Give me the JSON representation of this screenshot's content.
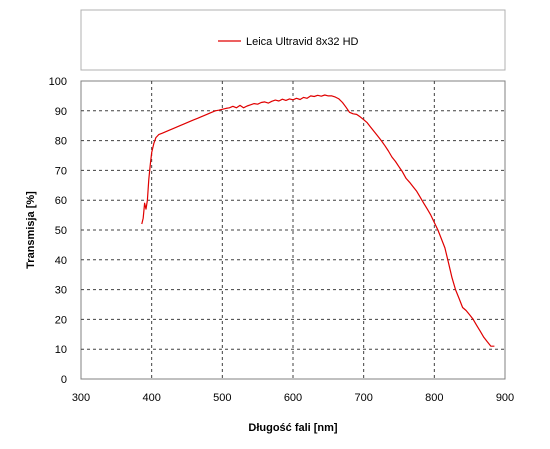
{
  "chart_data": {
    "type": "line",
    "title": "",
    "xlabel": "Długość fali [nm]",
    "ylabel": "Transmisja [%]",
    "xlim": [
      300,
      900
    ],
    "ylim": [
      0,
      100
    ],
    "xticks": [
      300,
      400,
      500,
      600,
      700,
      800,
      900
    ],
    "yticks": [
      0,
      10,
      20,
      30,
      40,
      50,
      60,
      70,
      80,
      90,
      100
    ],
    "grid": true,
    "legend_position": "top",
    "series": [
      {
        "name": "Leica Ultravid 8x32 HD",
        "color": "#e00000",
        "x": [
          386,
          388,
          390,
          392,
          394,
          396,
          398,
          400,
          403,
          406,
          410,
          415,
          420,
          425,
          430,
          435,
          440,
          445,
          450,
          455,
          460,
          465,
          470,
          475,
          480,
          485,
          490,
          495,
          500,
          505,
          510,
          515,
          520,
          525,
          530,
          535,
          540,
          545,
          550,
          555,
          560,
          565,
          570,
          575,
          580,
          585,
          590,
          595,
          600,
          605,
          610,
          615,
          620,
          625,
          630,
          635,
          640,
          645,
          650,
          655,
          660,
          665,
          670,
          675,
          680,
          685,
          690,
          695,
          700,
          705,
          710,
          715,
          720,
          725,
          730,
          735,
          740,
          745,
          750,
          755,
          760,
          765,
          770,
          775,
          780,
          785,
          790,
          795,
          800,
          805,
          810,
          815,
          820,
          825,
          830,
          835,
          840,
          845,
          850,
          855,
          860,
          865,
          870,
          875,
          880,
          885
        ],
        "y": [
          52,
          54,
          59,
          57,
          60,
          67,
          72,
          76,
          79,
          81,
          82,
          82.5,
          83,
          83.5,
          84,
          84.5,
          85,
          85.5,
          86,
          86.5,
          87,
          87.5,
          88,
          88.5,
          89,
          89.5,
          90,
          90.2,
          90.5,
          90.8,
          91,
          91.5,
          91,
          91.8,
          91,
          91.6,
          92,
          92.4,
          92.2,
          92.8,
          93,
          92.6,
          93.2,
          93.6,
          93.3,
          93.9,
          93.5,
          94,
          93.7,
          94.2,
          93.8,
          94.5,
          94.2,
          95,
          94.8,
          95.2,
          94.9,
          95.3,
          95,
          95,
          94.6,
          94,
          92.8,
          91.2,
          89.5,
          89,
          88.8,
          88,
          87,
          86,
          84.5,
          83,
          81.5,
          80,
          78.3,
          76.5,
          74.5,
          73,
          71.2,
          69.5,
          67.3,
          66,
          64.5,
          63,
          61,
          59,
          57,
          55,
          52.5,
          50,
          47,
          44,
          39,
          34,
          30,
          27,
          24,
          23,
          21.5,
          20,
          18,
          16,
          14,
          12.5,
          11,
          11
        ]
      }
    ]
  }
}
